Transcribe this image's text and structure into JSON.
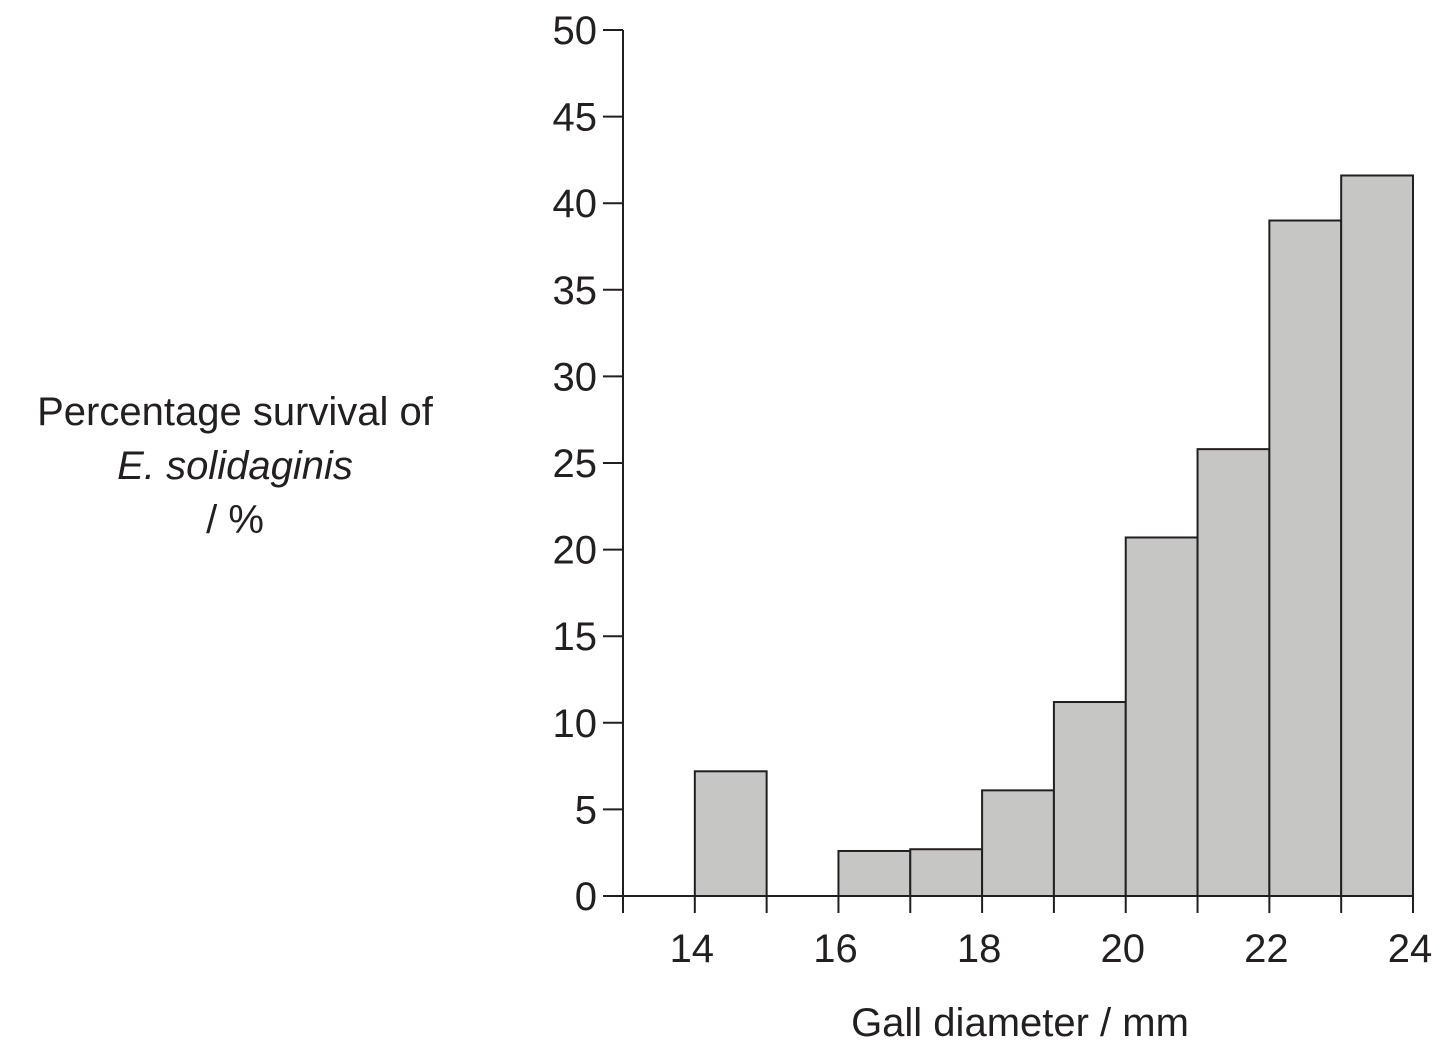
{
  "chart_data": {
    "type": "bar",
    "title": "",
    "xlabel": "Gall diameter / mm",
    "ylabel": {
      "line1": "Percentage survival of",
      "line2": "E. solidaginis",
      "line3": "/ %"
    },
    "xlim": [
      13,
      24
    ],
    "ylim": [
      0,
      50
    ],
    "x_ticks": [
      13,
      14,
      15,
      16,
      17,
      18,
      19,
      20,
      21,
      22,
      23,
      24
    ],
    "x_tick_labels": [
      {
        "value": 14,
        "label": "14"
      },
      {
        "value": 16,
        "label": "16"
      },
      {
        "value": 18,
        "label": "18"
      },
      {
        "value": 20,
        "label": "20"
      },
      {
        "value": 22,
        "label": "22"
      },
      {
        "value": 24,
        "label": "24"
      }
    ],
    "y_ticks": [
      {
        "value": 0,
        "label": "0"
      },
      {
        "value": 5,
        "label": "5"
      },
      {
        "value": 10,
        "label": "10"
      },
      {
        "value": 15,
        "label": "15"
      },
      {
        "value": 20,
        "label": "20"
      },
      {
        "value": 25,
        "label": "25"
      },
      {
        "value": 30,
        "label": "30"
      },
      {
        "value": 35,
        "label": "35"
      },
      {
        "value": 40,
        "label": "40"
      },
      {
        "value": 45,
        "label": "45"
      },
      {
        "value": 50,
        "label": "50"
      }
    ],
    "bins": [
      {
        "from": 14,
        "to": 15,
        "value": 7.2
      },
      {
        "from": 16,
        "to": 17,
        "value": 2.6
      },
      {
        "from": 17,
        "to": 18,
        "value": 2.7
      },
      {
        "from": 18,
        "to": 19,
        "value": 6.1
      },
      {
        "from": 19,
        "to": 20,
        "value": 11.2
      },
      {
        "from": 20,
        "to": 21,
        "value": 20.7
      },
      {
        "from": 21,
        "to": 22,
        "value": 25.8
      },
      {
        "from": 22,
        "to": 23,
        "value": 39.0
      },
      {
        "from": 23,
        "to": 24,
        "value": 41.6
      }
    ],
    "grid": false,
    "colors": {
      "bar_fill": "#c6c6c5",
      "line": "#231f20"
    }
  }
}
